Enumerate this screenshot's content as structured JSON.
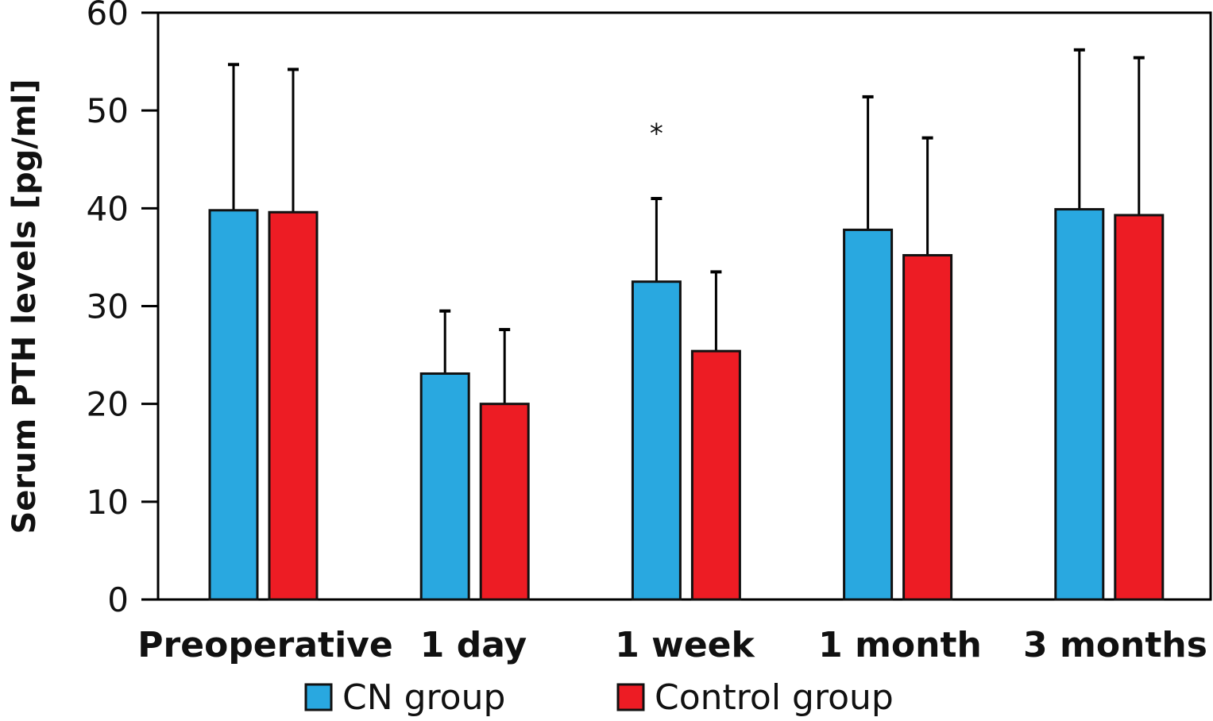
{
  "chart_data": {
    "type": "bar",
    "title": "",
    "xlabel": "",
    "ylabel": "Serum PTH levels [pg/ml]",
    "ylim": [
      0,
      60
    ],
    "yticks": [
      0,
      10,
      20,
      30,
      40,
      50,
      60
    ],
    "grid": false,
    "categories": [
      "Preoperative",
      "1 day",
      "1 week",
      "1 month",
      "3 months"
    ],
    "series": [
      {
        "name": "CN group",
        "color": "#29a8e0",
        "values": [
          39.8,
          23.1,
          32.5,
          37.8,
          39.9
        ],
        "error_upper": [
          54.7,
          29.5,
          41.0,
          51.4,
          56.2
        ]
      },
      {
        "name": "Control group",
        "color": "#ed1c24",
        "values": [
          39.6,
          20.0,
          25.4,
          35.2,
          39.3
        ],
        "error_upper": [
          54.2,
          27.6,
          33.5,
          47.2,
          55.4
        ]
      }
    ],
    "annotations": [
      {
        "text": "*",
        "category": "1 week",
        "series": "CN group",
        "y": 48.5
      }
    ],
    "legend": {
      "placement": "bottom-center",
      "entries": [
        "CN group",
        "Control group"
      ]
    }
  }
}
